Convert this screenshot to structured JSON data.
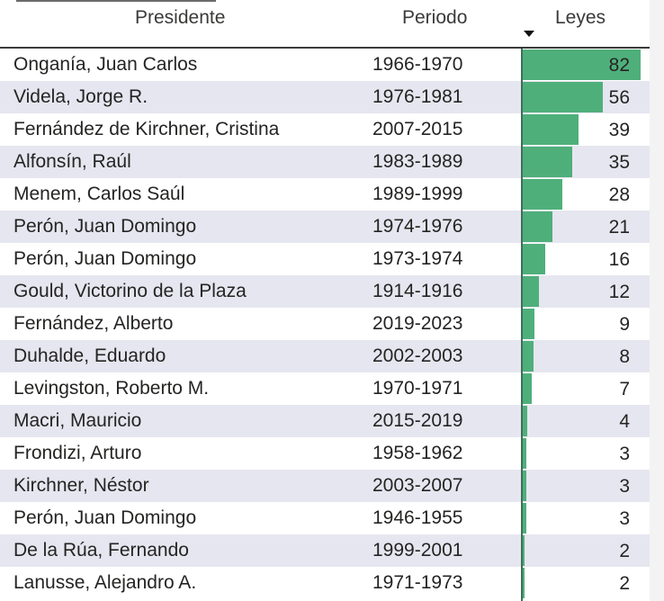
{
  "table": {
    "headers": {
      "president": "Presidente",
      "period": "Periodo",
      "laws": "Leyes"
    },
    "sort": {
      "column": "Leyes",
      "direction": "descending",
      "icon": "sort-desc-icon"
    },
    "colors": {
      "bar": "#4faf7b",
      "alt_row": "#e6e6f0"
    },
    "rows": [
      {
        "president": "Onganía, Juan Carlos",
        "period": "1966-1970",
        "laws": "82"
      },
      {
        "president": "Videla, Jorge R.",
        "period": "1976-1981",
        "laws": "56"
      },
      {
        "president": "Fernández de Kirchner, Cristina",
        "period": "2007-2015",
        "laws": "39"
      },
      {
        "president": "Alfonsín, Raúl",
        "period": "1983-1989",
        "laws": "35"
      },
      {
        "president": "Menem, Carlos Saúl",
        "period": "1989-1999",
        "laws": "28"
      },
      {
        "president": "Perón, Juan Domingo",
        "period": "1974-1976",
        "laws": "21"
      },
      {
        "president": "Perón, Juan Domingo",
        "period": "1973-1974",
        "laws": "16"
      },
      {
        "president": "Gould, Victorino de la Plaza",
        "period": "1914-1916",
        "laws": "12"
      },
      {
        "president": "Fernández, Alberto",
        "period": "2019-2023",
        "laws": "9"
      },
      {
        "president": "Duhalde, Eduardo",
        "period": "2002-2003",
        "laws": "8"
      },
      {
        "president": "Levingston, Roberto M.",
        "period": "1970-1971",
        "laws": "7"
      },
      {
        "president": "Macri, Mauricio",
        "period": "2015-2019",
        "laws": "4"
      },
      {
        "president": "Frondizi, Arturo",
        "period": "1958-1962",
        "laws": "3"
      },
      {
        "president": "Kirchner, Néstor",
        "period": "2003-2007",
        "laws": "3"
      },
      {
        "president": "Perón, Juan Domingo",
        "period": "1946-1955",
        "laws": "3"
      },
      {
        "president": "De la Rúa, Fernando",
        "period": "1999-2001",
        "laws": "2"
      },
      {
        "president": "Lanusse, Alejandro A.",
        "period": "1971-1973",
        "laws": "2"
      }
    ]
  },
  "chart_data": {
    "type": "table",
    "columns": [
      "Presidente",
      "Periodo",
      "Leyes"
    ],
    "categories": [
      "Onganía, Juan Carlos",
      "Videla, Jorge R.",
      "Fernández de Kirchner, Cristina",
      "Alfonsín, Raúl",
      "Menem, Carlos Saúl",
      "Perón, Juan Domingo",
      "Perón, Juan Domingo",
      "Gould, Victorino de la Plaza",
      "Fernández, Alberto",
      "Duhalde, Eduardo",
      "Levingston, Roberto M.",
      "Macri, Mauricio",
      "Frondizi, Arturo",
      "Kirchner, Néstor",
      "Perón, Juan Domingo",
      "De la Rúa, Fernando",
      "Lanusse, Alejandro A."
    ],
    "periods": [
      "1966-1970",
      "1976-1981",
      "2007-2015",
      "1983-1989",
      "1989-1999",
      "1974-1976",
      "1973-1974",
      "1914-1916",
      "2019-2023",
      "2002-2003",
      "1970-1971",
      "2015-2019",
      "1958-1962",
      "2003-2007",
      "1946-1955",
      "1999-2001",
      "1971-1973"
    ],
    "values": [
      82,
      56,
      39,
      35,
      28,
      21,
      16,
      12,
      9,
      8,
      7,
      4,
      3,
      3,
      3,
      2,
      2
    ],
    "data_bars": true,
    "bar_max": 82
  }
}
